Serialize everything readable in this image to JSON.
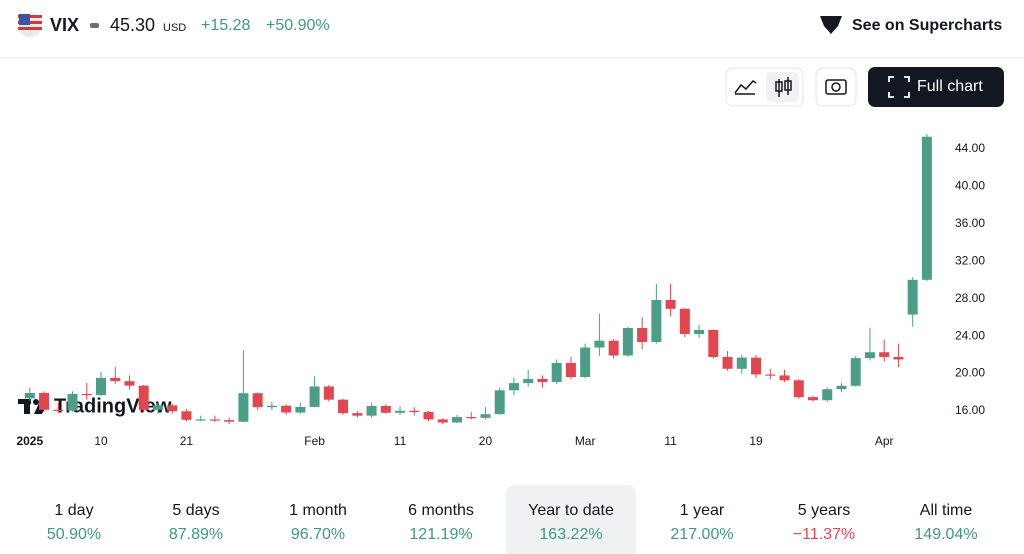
{
  "header": {
    "symbol": "VIX",
    "price": "45.30",
    "currency": "USD",
    "change": "+15.28",
    "change_percent": "+50.90%",
    "supercharts": "See on Supercharts"
  },
  "toolbar": {
    "full_chart": "Full chart"
  },
  "watermark": "TradingView",
  "chart_data": {
    "type": "candlestick",
    "categories": [
      "2025",
      null,
      null,
      null,
      null,
      "10",
      null,
      null,
      null,
      null,
      null,
      "21",
      null,
      null,
      null,
      null,
      null,
      null,
      null,
      null,
      "Feb",
      null,
      null,
      null,
      null,
      null,
      "11",
      null,
      null,
      null,
      null,
      null,
      "20",
      null,
      null,
      null,
      null,
      null,
      null,
      "Mar",
      null,
      null,
      null,
      null,
      null,
      "11",
      null,
      null,
      null,
      null,
      null,
      "19",
      null,
      null,
      null,
      null,
      null,
      null,
      null,
      null,
      "Apr",
      null,
      null,
      null
    ],
    "open": [
      17.35,
      17.93,
      16.13,
      16.04,
      17.82,
      17.7,
      19.54,
      19.19,
      18.71,
      16.12,
      16.6,
      15.97,
      15.06,
      15.1,
      15.02,
      14.85,
      17.9,
      16.41,
      16.56,
      15.84,
      16.43,
      18.62,
      17.21,
      15.77,
      15.5,
      16.54,
      15.81,
      16.02,
      15.89,
      15.1,
      14.77,
      15.35,
      15.27,
      15.66,
      18.21,
      18.98,
      19.43,
      19.1,
      21.13,
      19.63,
      22.78,
      23.51,
      21.93,
      24.87,
      23.37,
      27.86,
      26.92,
      24.23,
      24.66,
      21.77,
      20.51,
      21.7,
      19.9,
      19.8,
      19.28,
      17.48,
      17.15,
      18.33,
      18.69,
      21.65,
      22.28,
      21.77,
      26.3,
      30.02
    ],
    "high": [
      18.5,
      18.1,
      16.9,
      18.1,
      19.0,
      20.2,
      20.7,
      19.8,
      18.8,
      16.9,
      16.8,
      16.2,
      15.5,
      15.5,
      15.3,
      22.5,
      18.0,
      17.0,
      16.7,
      16.9,
      19.7,
      18.8,
      17.3,
      16.0,
      16.9,
      16.7,
      16.5,
      16.4,
      16.0,
      15.2,
      15.6,
      15.9,
      16.4,
      18.5,
      19.6,
      20.4,
      19.8,
      21.5,
      21.8,
      23.2,
      26.4,
      23.7,
      25.0,
      26.0,
      29.6,
      29.6,
      27.0,
      25.2,
      24.7,
      22.4,
      22.0,
      22.0,
      20.5,
      20.4,
      19.4,
      17.6,
      18.5,
      19.0,
      21.9,
      24.9,
      23.6,
      23.2,
      30.3,
      45.6
    ],
    "low": [
      17.1,
      15.9,
      15.8,
      15.9,
      17.2,
      17.6,
      18.9,
      18.3,
      15.9,
      15.7,
      15.7,
      14.9,
      14.9,
      14.8,
      14.6,
      14.8,
      16.1,
      16.1,
      15.6,
      15.7,
      16.4,
      17.0,
      15.6,
      15.3,
      15.3,
      15.7,
      15.6,
      15.5,
      14.9,
      14.6,
      14.7,
      15.1,
      15.1,
      15.6,
      17.7,
      18.6,
      18.5,
      18.9,
      19.4,
      19.5,
      21.9,
      21.6,
      21.8,
      22.6,
      23.2,
      26.1,
      23.9,
      23.8,
      21.6,
      20.3,
      20.0,
      19.5,
      19.4,
      19.1,
      17.3,
      17.0,
      17.0,
      18.0,
      18.6,
      21.4,
      21.3,
      20.7,
      25.0,
      29.9
    ],
    "close": [
      17.93,
      16.13,
      16.04,
      17.82,
      17.7,
      19.54,
      19.19,
      18.71,
      16.12,
      16.6,
      15.97,
      15.06,
      15.1,
      15.02,
      14.85,
      17.9,
      16.41,
      16.56,
      15.84,
      16.43,
      18.62,
      17.21,
      15.77,
      15.5,
      16.54,
      15.81,
      16.02,
      15.89,
      15.1,
      14.77,
      15.35,
      15.27,
      15.66,
      18.21,
      18.98,
      19.43,
      19.1,
      21.13,
      19.63,
      22.78,
      23.51,
      21.93,
      24.87,
      23.37,
      27.86,
      26.92,
      24.23,
      24.66,
      21.77,
      20.51,
      21.7,
      19.9,
      19.8,
      19.28,
      17.48,
      17.15,
      18.33,
      18.69,
      21.65,
      22.28,
      21.77,
      21.51,
      30.02,
      45.31
    ],
    "up_color": "#4d9e88",
    "down_color": "#e2474f",
    "ylim": [
      14,
      47.1
    ],
    "yticks": [
      {
        "value": 16,
        "label": "16.00"
      },
      {
        "value": 20,
        "label": "20.00"
      },
      {
        "value": 24,
        "label": "24.00"
      },
      {
        "value": 28,
        "label": "28.00"
      },
      {
        "value": 32,
        "label": "32.00"
      },
      {
        "value": 36,
        "label": "36.00"
      },
      {
        "value": 40,
        "label": "40.00"
      },
      {
        "value": 44,
        "label": "44.00"
      }
    ]
  },
  "periods": [
    {
      "label": "1 day",
      "value": "50.90%"
    },
    {
      "label": "5 days",
      "value": "87.89%"
    },
    {
      "label": "1 month",
      "value": "96.70%"
    },
    {
      "label": "6 months",
      "value": "121.19%"
    },
    {
      "label": "Year to date",
      "value": "163.22%"
    },
    {
      "label": "1 year",
      "value": "217.00%"
    },
    {
      "label": "5 years",
      "value": "−11.37%"
    },
    {
      "label": "All time",
      "value": "149.04%"
    }
  ]
}
